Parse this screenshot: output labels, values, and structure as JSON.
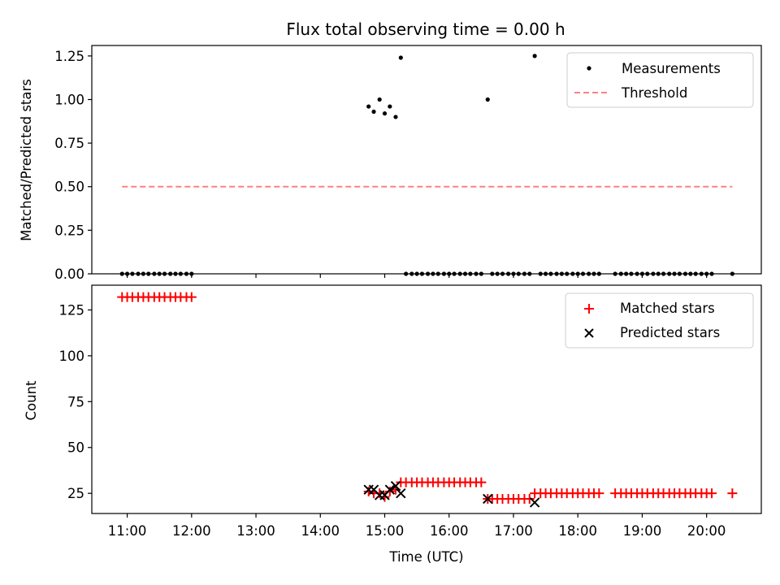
{
  "chart_data": [
    {
      "type": "scatter",
      "title": "Flux total observing time = 0.00 h",
      "xlabel": "",
      "ylabel": "Matched/Predicted stars",
      "xlim": [
        10.45,
        20.85
      ],
      "ylim": [
        0.0,
        1.31
      ],
      "x_tick_values": [
        11,
        12,
        13,
        14,
        15,
        16,
        17,
        18,
        19,
        20
      ],
      "x_tick_labels_visible": false,
      "y_ticks": [
        0.0,
        0.25,
        0.5,
        0.75,
        1.0,
        1.25
      ],
      "y_tick_labels": [
        "0.00",
        "0.25",
        "0.50",
        "0.75",
        "1.00",
        "1.25"
      ],
      "legend_position": "top-right",
      "grid": false,
      "series": [
        {
          "name": "Measurements",
          "kind": "scatter",
          "color": "#000000",
          "marker": "dot",
          "points": [
            [
              10.92,
              0
            ],
            [
              11.0,
              0
            ],
            [
              11.08,
              0
            ],
            [
              11.17,
              0
            ],
            [
              11.25,
              0
            ],
            [
              11.33,
              0
            ],
            [
              11.42,
              0
            ],
            [
              11.5,
              0
            ],
            [
              11.58,
              0
            ],
            [
              11.67,
              0
            ],
            [
              11.75,
              0
            ],
            [
              11.83,
              0
            ],
            [
              11.92,
              0
            ],
            [
              12.0,
              0
            ],
            [
              14.75,
              0.96
            ],
            [
              14.83,
              0.93
            ],
            [
              14.92,
              1.0
            ],
            [
              15.0,
              0.92
            ],
            [
              15.08,
              0.96
            ],
            [
              15.17,
              0.9
            ],
            [
              15.25,
              1.24
            ],
            [
              15.33,
              0
            ],
            [
              15.42,
              0
            ],
            [
              15.5,
              0
            ],
            [
              15.58,
              0
            ],
            [
              15.67,
              0
            ],
            [
              15.75,
              0
            ],
            [
              15.83,
              0
            ],
            [
              15.92,
              0
            ],
            [
              16.0,
              0
            ],
            [
              16.08,
              0
            ],
            [
              16.17,
              0
            ],
            [
              16.25,
              0
            ],
            [
              16.33,
              0
            ],
            [
              16.42,
              0
            ],
            [
              16.5,
              0
            ],
            [
              16.6,
              1.0
            ],
            [
              16.67,
              0
            ],
            [
              16.75,
              0
            ],
            [
              16.83,
              0
            ],
            [
              16.92,
              0
            ],
            [
              17.0,
              0
            ],
            [
              17.08,
              0
            ],
            [
              17.17,
              0
            ],
            [
              17.25,
              0
            ],
            [
              17.33,
              1.25
            ],
            [
              17.42,
              0
            ],
            [
              17.5,
              0
            ],
            [
              17.58,
              0
            ],
            [
              17.67,
              0
            ],
            [
              17.75,
              0
            ],
            [
              17.83,
              0
            ],
            [
              17.92,
              0
            ],
            [
              18.0,
              0
            ],
            [
              18.08,
              0
            ],
            [
              18.17,
              0
            ],
            [
              18.25,
              0
            ],
            [
              18.33,
              0
            ],
            [
              18.58,
              0
            ],
            [
              18.67,
              0
            ],
            [
              18.75,
              0
            ],
            [
              18.83,
              0
            ],
            [
              18.92,
              0
            ],
            [
              19.0,
              0
            ],
            [
              19.08,
              0
            ],
            [
              19.17,
              0
            ],
            [
              19.25,
              0
            ],
            [
              19.33,
              0
            ],
            [
              19.42,
              0
            ],
            [
              19.5,
              0
            ],
            [
              19.58,
              0
            ],
            [
              19.67,
              0
            ],
            [
              19.75,
              0
            ],
            [
              19.83,
              0
            ],
            [
              19.92,
              0
            ],
            [
              20.0,
              0
            ],
            [
              20.08,
              0
            ],
            [
              20.4,
              0
            ]
          ]
        },
        {
          "name": "Threshold",
          "kind": "line",
          "color": "#ff8080",
          "dash": true,
          "x": [
            10.92,
            20.4
          ],
          "values": [
            0.5,
            0.5
          ]
        }
      ]
    },
    {
      "type": "scatter",
      "title": "",
      "xlabel": "Time (UTC)",
      "ylabel": "Count",
      "xlim": [
        10.45,
        20.85
      ],
      "ylim": [
        14.0,
        138.5
      ],
      "x_tick_values": [
        11,
        12,
        13,
        14,
        15,
        16,
        17,
        18,
        19,
        20
      ],
      "x_tick_labels": [
        "11:00",
        "12:00",
        "13:00",
        "14:00",
        "15:00",
        "16:00",
        "17:00",
        "18:00",
        "19:00",
        "20:00"
      ],
      "y_ticks": [
        25,
        50,
        75,
        100,
        125
      ],
      "y_tick_labels": [
        "25",
        "50",
        "75",
        "100",
        "125"
      ],
      "legend_position": "top-right",
      "grid": false,
      "series": [
        {
          "name": "Matched stars",
          "kind": "scatter",
          "color": "#ff0000",
          "marker": "plus",
          "points": [
            [
              10.92,
              132
            ],
            [
              11.0,
              132
            ],
            [
              11.08,
              132
            ],
            [
              11.17,
              132
            ],
            [
              11.25,
              132
            ],
            [
              11.33,
              132
            ],
            [
              11.42,
              132
            ],
            [
              11.5,
              132
            ],
            [
              11.58,
              132
            ],
            [
              11.67,
              132
            ],
            [
              11.75,
              132
            ],
            [
              11.83,
              132
            ],
            [
              11.92,
              132
            ],
            [
              12.0,
              132
            ],
            [
              14.75,
              26
            ],
            [
              14.83,
              25
            ],
            [
              14.92,
              25
            ],
            [
              15.0,
              23
            ],
            [
              15.08,
              26
            ],
            [
              15.17,
              27
            ],
            [
              15.25,
              31
            ],
            [
              15.33,
              31
            ],
            [
              15.42,
              31
            ],
            [
              15.5,
              31
            ],
            [
              15.58,
              31
            ],
            [
              15.67,
              31
            ],
            [
              15.75,
              31
            ],
            [
              15.83,
              31
            ],
            [
              15.92,
              31
            ],
            [
              16.0,
              31
            ],
            [
              16.08,
              31
            ],
            [
              16.17,
              31
            ],
            [
              16.25,
              31
            ],
            [
              16.33,
              31
            ],
            [
              16.42,
              31
            ],
            [
              16.5,
              31
            ],
            [
              16.6,
              22
            ],
            [
              16.67,
              22
            ],
            [
              16.75,
              22
            ],
            [
              16.83,
              22
            ],
            [
              16.92,
              22
            ],
            [
              17.0,
              22
            ],
            [
              17.08,
              22
            ],
            [
              17.17,
              22
            ],
            [
              17.25,
              22
            ],
            [
              17.33,
              25
            ],
            [
              17.42,
              25
            ],
            [
              17.5,
              25
            ],
            [
              17.58,
              25
            ],
            [
              17.67,
              25
            ],
            [
              17.75,
              25
            ],
            [
              17.83,
              25
            ],
            [
              17.92,
              25
            ],
            [
              18.0,
              25
            ],
            [
              18.08,
              25
            ],
            [
              18.17,
              25
            ],
            [
              18.25,
              25
            ],
            [
              18.33,
              25
            ],
            [
              18.58,
              25
            ],
            [
              18.67,
              25
            ],
            [
              18.75,
              25
            ],
            [
              18.83,
              25
            ],
            [
              18.92,
              25
            ],
            [
              19.0,
              25
            ],
            [
              19.08,
              25
            ],
            [
              19.17,
              25
            ],
            [
              19.25,
              25
            ],
            [
              19.33,
              25
            ],
            [
              19.42,
              25
            ],
            [
              19.5,
              25
            ],
            [
              19.58,
              25
            ],
            [
              19.67,
              25
            ],
            [
              19.75,
              25
            ],
            [
              19.83,
              25
            ],
            [
              19.92,
              25
            ],
            [
              20.0,
              25
            ],
            [
              20.08,
              25
            ],
            [
              20.4,
              25
            ]
          ]
        },
        {
          "name": "Predicted stars",
          "kind": "scatter",
          "color": "#000000",
          "marker": "x",
          "points": [
            [
              14.75,
              27
            ],
            [
              14.83,
              27
            ],
            [
              14.92,
              24
            ],
            [
              15.0,
              24
            ],
            [
              15.08,
              27
            ],
            [
              15.17,
              29
            ],
            [
              15.25,
              25
            ],
            [
              16.6,
              22
            ],
            [
              17.33,
              20
            ]
          ]
        }
      ]
    }
  ]
}
